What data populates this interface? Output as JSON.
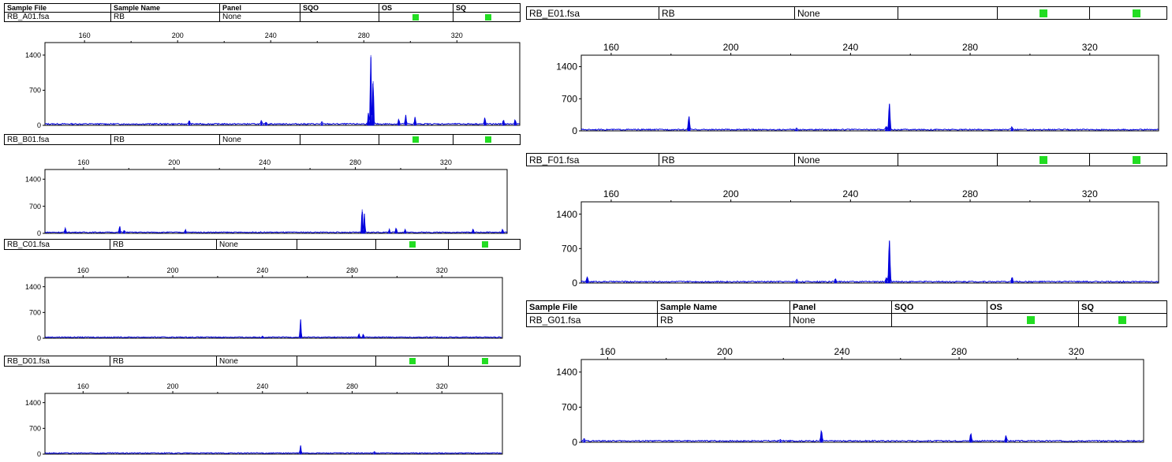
{
  "table_header": {
    "sample_file": "Sample File",
    "sample_name": "Sample Name",
    "panel": "Panel",
    "sqo": "SQO",
    "os": "OS",
    "sq": "SQ"
  },
  "samples": [
    {
      "file": "RB_A01.fsa",
      "name": "RB",
      "panel": "None",
      "sqo": "",
      "os_flag": "#22dd22",
      "sq_flag": "#22dd22"
    },
    {
      "file": "RB_B01.fsa",
      "name": "RB",
      "panel": "None",
      "sqo": "",
      "os_flag": "#22dd22",
      "sq_flag": "#22dd22"
    },
    {
      "file": "RB_C01.fsa",
      "name": "RB",
      "panel": "None",
      "sqo": "",
      "os_flag": "#22dd22",
      "sq_flag": "#22dd22"
    },
    {
      "file": "RB_D01.fsa",
      "name": "RB",
      "panel": "None",
      "sqo": "",
      "os_flag": "#22dd22",
      "sq_flag": "#22dd22"
    },
    {
      "file": "RB_E01.fsa",
      "name": "RB",
      "panel": "None",
      "sqo": "",
      "os_flag": "#22dd22",
      "sq_flag": "#22dd22"
    },
    {
      "file": "RB_F01.fsa",
      "name": "RB",
      "panel": "None",
      "sqo": "",
      "os_flag": "#22dd22",
      "sq_flag": "#22dd22"
    },
    {
      "file": "RB_G01.fsa",
      "name": "RB",
      "panel": "None",
      "sqo": "",
      "os_flag": "#22dd22",
      "sq_flag": "#22dd22"
    }
  ],
  "trace_color": "#0000dd",
  "chart_data": [
    {
      "type": "line",
      "sample": "RB_A01.fsa",
      "xlim": [
        143,
        347
      ],
      "ylim": [
        0,
        1650
      ],
      "x_ticks": [
        160,
        200,
        240,
        280,
        320
      ],
      "y_ticks": [
        0,
        700,
        1400
      ],
      "peaks": [
        {
          "x": 205,
          "y": 80
        },
        {
          "x": 236,
          "y": 60
        },
        {
          "x": 238,
          "y": 50
        },
        {
          "x": 262,
          "y": 40
        },
        {
          "x": 282,
          "y": 220
        },
        {
          "x": 283,
          "y": 1400
        },
        {
          "x": 284,
          "y": 880
        },
        {
          "x": 295,
          "y": 90
        },
        {
          "x": 298,
          "y": 180
        },
        {
          "x": 302,
          "y": 130
        },
        {
          "x": 332,
          "y": 130
        },
        {
          "x": 340,
          "y": 70
        },
        {
          "x": 345,
          "y": 90
        }
      ]
    },
    {
      "type": "line",
      "sample": "RB_B01.fsa",
      "xlim": [
        143,
        347
      ],
      "ylim": [
        0,
        1650
      ],
      "x_ticks": [
        160,
        200,
        240,
        280,
        320
      ],
      "y_ticks": [
        0,
        700,
        1400
      ],
      "peaks": [
        {
          "x": 152,
          "y": 100
        },
        {
          "x": 176,
          "y": 160
        },
        {
          "x": 178,
          "y": 60
        },
        {
          "x": 205,
          "y": 70
        },
        {
          "x": 283,
          "y": 620
        },
        {
          "x": 284,
          "y": 480
        },
        {
          "x": 295,
          "y": 80
        },
        {
          "x": 298,
          "y": 120
        },
        {
          "x": 302,
          "y": 70
        },
        {
          "x": 332,
          "y": 90
        },
        {
          "x": 345,
          "y": 70
        }
      ]
    },
    {
      "type": "line",
      "sample": "RB_C01.fsa",
      "xlim": [
        143,
        347
      ],
      "ylim": [
        0,
        1650
      ],
      "x_ticks": [
        160,
        200,
        240,
        280,
        320
      ],
      "y_ticks": [
        0,
        700,
        1400
      ],
      "peaks": [
        {
          "x": 240,
          "y": 40
        },
        {
          "x": 257,
          "y": 480
        },
        {
          "x": 283,
          "y": 100
        },
        {
          "x": 285,
          "y": 80
        }
      ]
    },
    {
      "type": "line",
      "sample": "RB_D01.fsa",
      "xlim": [
        143,
        347
      ],
      "ylim": [
        0,
        1650
      ],
      "x_ticks": [
        160,
        200,
        240,
        280,
        320
      ],
      "y_ticks": [
        0,
        700,
        1400
      ],
      "peaks": [
        {
          "x": 257,
          "y": 200
        },
        {
          "x": 290,
          "y": 40
        }
      ]
    },
    {
      "type": "line",
      "sample": "RB_E01.fsa",
      "xlim": [
        150,
        343
      ],
      "ylim": [
        0,
        1650
      ],
      "x_ticks": [
        160,
        200,
        240,
        280,
        320
      ],
      "y_ticks": [
        0,
        700,
        1400
      ],
      "peaks": [
        {
          "x": 186,
          "y": 300
        },
        {
          "x": 222,
          "y": 30
        },
        {
          "x": 252,
          "y": 80
        },
        {
          "x": 253,
          "y": 580
        },
        {
          "x": 294,
          "y": 60
        }
      ]
    },
    {
      "type": "line",
      "sample": "RB_F01.fsa",
      "xlim": [
        150,
        343
      ],
      "ylim": [
        0,
        1650
      ],
      "x_ticks": [
        160,
        200,
        240,
        280,
        320
      ],
      "y_ticks": [
        0,
        700,
        1400
      ],
      "peaks": [
        {
          "x": 152,
          "y": 90
        },
        {
          "x": 222,
          "y": 40
        },
        {
          "x": 235,
          "y": 60
        },
        {
          "x": 252,
          "y": 90
        },
        {
          "x": 253,
          "y": 860
        },
        {
          "x": 294,
          "y": 90
        }
      ]
    },
    {
      "type": "line",
      "sample": "RB_G01.fsa",
      "xlim": [
        151,
        343
      ],
      "ylim": [
        0,
        1650
      ],
      "x_ticks": [
        160,
        200,
        240,
        280,
        320
      ],
      "y_ticks": [
        0,
        700,
        1400
      ],
      "peaks": [
        {
          "x": 152,
          "y": 40
        },
        {
          "x": 219,
          "y": 30
        },
        {
          "x": 233,
          "y": 220
        },
        {
          "x": 284,
          "y": 150
        },
        {
          "x": 296,
          "y": 110
        }
      ]
    }
  ]
}
